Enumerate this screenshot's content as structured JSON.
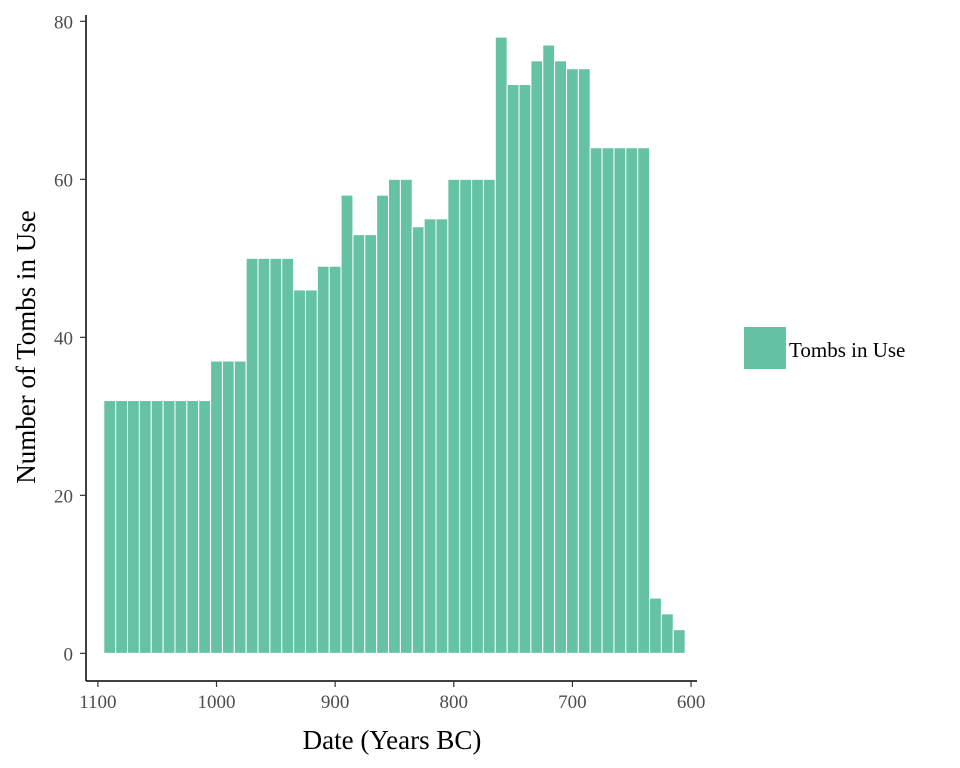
{
  "chart_data": {
    "type": "bar",
    "title": "",
    "xlabel": "Date (Years BC)",
    "ylabel": "Number of Tombs in Use",
    "x_reversed": true,
    "xlim": [
      1110,
      595
    ],
    "ylim": [
      -3.5,
      80.8
    ],
    "bin_width_years": 10,
    "x_ticks": [
      1100,
      1000,
      900,
      800,
      700,
      600
    ],
    "y_ticks": [
      0,
      20,
      40,
      60,
      80
    ],
    "grid": false,
    "legend": {
      "position": "right",
      "entries": [
        "Tombs in Use"
      ]
    },
    "bar_color": "#66c2a5",
    "series": [
      {
        "name": "Tombs in Use",
        "x": [
          1090,
          1080,
          1070,
          1060,
          1050,
          1040,
          1030,
          1020,
          1010,
          1000,
          990,
          980,
          970,
          960,
          950,
          940,
          930,
          920,
          910,
          900,
          890,
          880,
          870,
          860,
          850,
          840,
          830,
          820,
          810,
          800,
          790,
          780,
          770,
          760,
          750,
          740,
          730,
          720,
          710,
          700,
          690,
          680,
          670,
          660,
          650,
          640,
          630,
          620,
          610
        ],
        "values": [
          32,
          32,
          32,
          32,
          32,
          32,
          32,
          32,
          32,
          37,
          37,
          37,
          50,
          50,
          50,
          50,
          46,
          46,
          49,
          49,
          58,
          53,
          53,
          58,
          60,
          60,
          54,
          55,
          55,
          60,
          60,
          60,
          60,
          78,
          72,
          72,
          75,
          77,
          75,
          74,
          74,
          64,
          64,
          64,
          64,
          64,
          7,
          5,
          3
        ]
      }
    ]
  }
}
